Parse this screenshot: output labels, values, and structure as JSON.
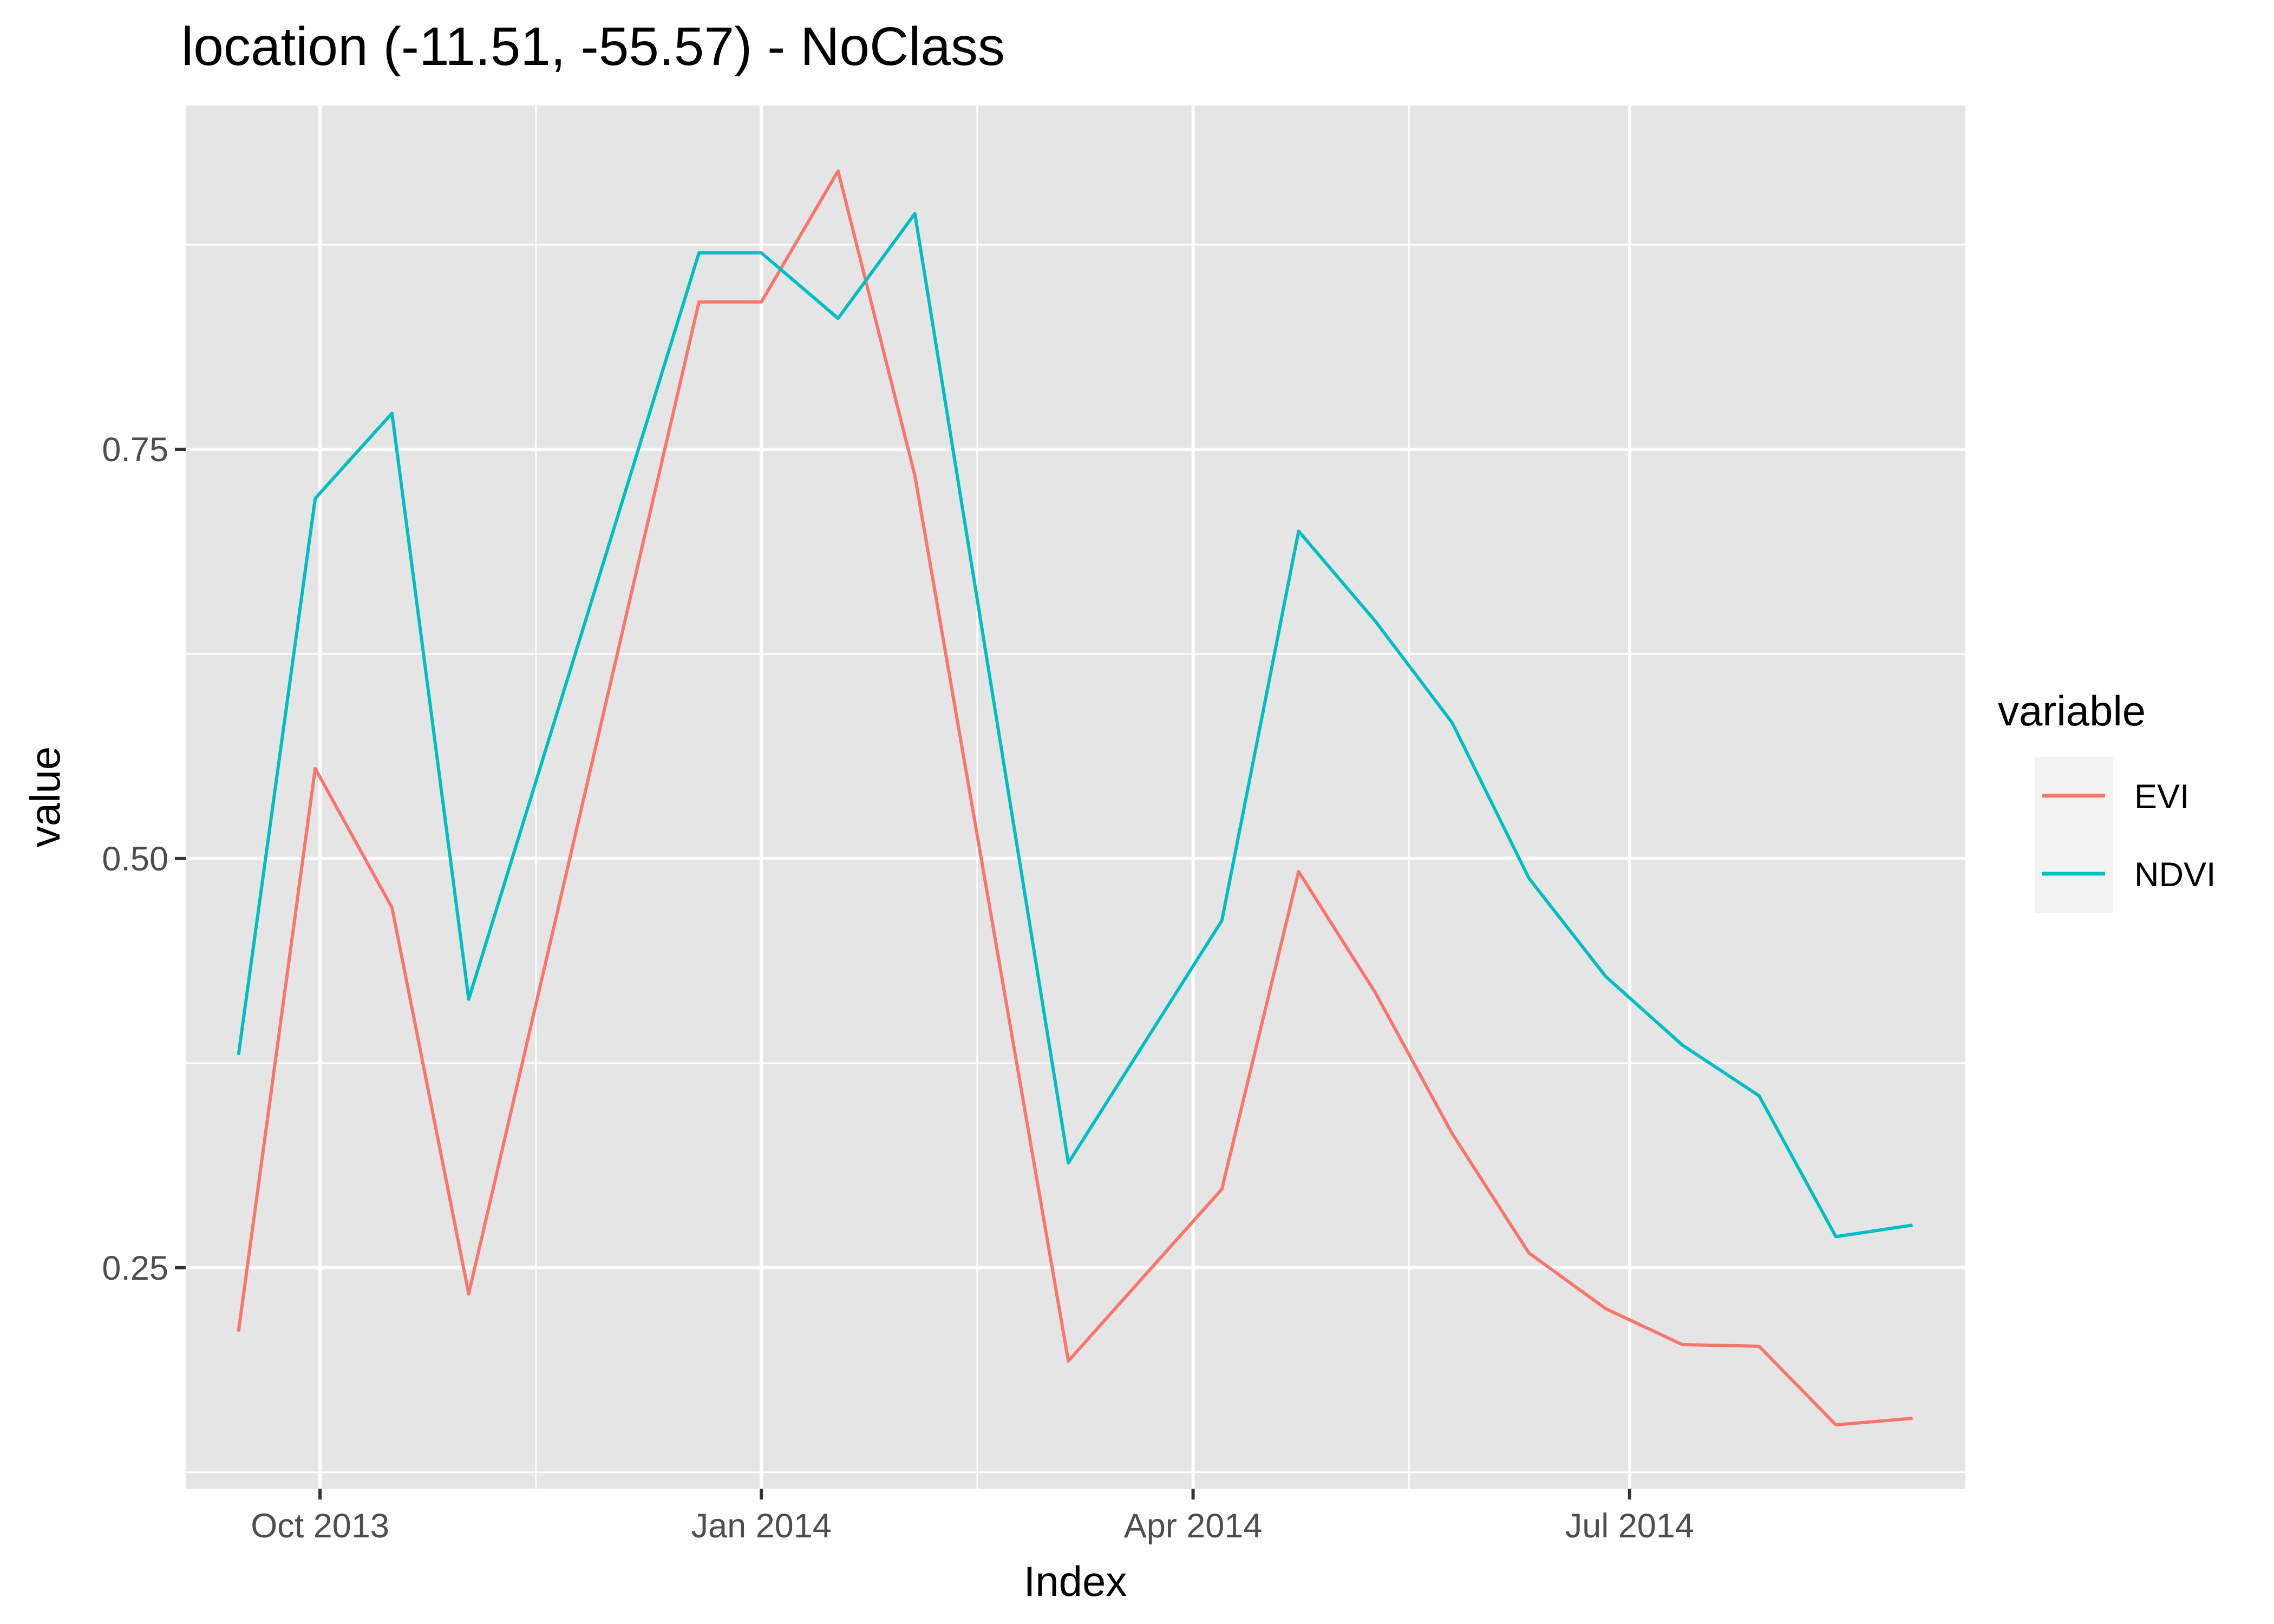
{
  "chart_data": {
    "type": "line",
    "title": "location (-11.51, -55.57) - NoClass",
    "xlabel": "Index",
    "ylabel": "value",
    "x_type": "date",
    "x": [
      "2013-09-14",
      "2013-09-30",
      "2013-10-16",
      "2013-11-01",
      "2013-11-17",
      "2013-12-03",
      "2013-12-19",
      "2014-01-01",
      "2014-01-17",
      "2014-02-02",
      "2014-02-18",
      "2014-03-06",
      "2014-03-22",
      "2014-04-07",
      "2014-04-23",
      "2014-05-09",
      "2014-05-25",
      "2014-06-10",
      "2014-06-26",
      "2014-07-12",
      "2014-07-28",
      "2014-08-13",
      "2014-08-29"
    ],
    "series": [
      {
        "name": "EVI",
        "color": "#F8766D",
        "values": [
          0.211,
          0.555,
          0.47,
          0.234,
          null,
          null,
          0.84,
          0.84,
          0.92,
          0.734,
          null,
          0.193,
          null,
          0.298,
          0.492,
          0.418,
          0.332,
          0.259,
          0.225,
          0.203,
          0.202,
          0.154,
          0.158
        ]
      },
      {
        "name": "NDVI",
        "color": "#00BFC4",
        "values": [
          0.38,
          0.72,
          0.772,
          0.414,
          null,
          null,
          0.87,
          0.87,
          0.83,
          0.894,
          null,
          0.314,
          null,
          0.462,
          0.7,
          0.645,
          0.583,
          0.488,
          0.428,
          0.386,
          0.355,
          0.269,
          0.276
        ]
      }
    ],
    "x_ticks": [
      {
        "date": "2013-10-01",
        "label": "Oct 2013"
      },
      {
        "date": "2014-01-01",
        "label": "Jan 2014"
      },
      {
        "date": "2014-04-01",
        "label": "Apr 2014"
      },
      {
        "date": "2014-07-01",
        "label": "Jul 2014"
      }
    ],
    "x_minor_ticks": [
      "2013-11-15",
      "2014-02-15",
      "2014-05-16"
    ],
    "xlim": [
      "2013-09-03",
      "2014-09-09"
    ],
    "y_ticks": [
      0.25,
      0.5,
      0.75
    ],
    "y_tick_labels": [
      "0.25",
      "0.50",
      "0.75"
    ],
    "y_minor_ticks": [
      0.125,
      0.375,
      0.625,
      0.875
    ],
    "ylim": [
      0.115,
      0.96
    ],
    "grid": true,
    "background": "#E5E5E5",
    "legend": {
      "title": "variable",
      "position": "right",
      "entries": [
        "EVI",
        "NDVI"
      ]
    }
  }
}
